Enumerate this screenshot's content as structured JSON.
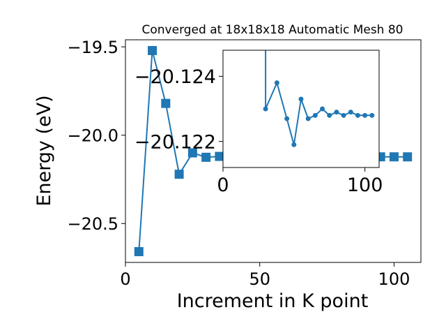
{
  "chart_data": [
    {
      "type": "line",
      "title": "Converged at 18x18x18 Automatic Mesh 80",
      "xlabel": "Increment in K point",
      "ylabel": "Energy (eV)",
      "xlim": [
        0,
        110
      ],
      "ylim": [
        -20.72,
        -19.46
      ],
      "xticks": [
        0,
        50,
        100
      ],
      "xtick_labels": [
        "0",
        "50",
        "100"
      ],
      "yticks": [
        -19.5,
        -20.0,
        -20.5
      ],
      "ytick_labels": [
        "−19.5",
        "−20.0",
        "−20.5"
      ],
      "marker": "square",
      "color": "#1f77b4",
      "grid": false,
      "series": [
        {
          "x": [
            5,
            10,
            15,
            20,
            25,
            30,
            35,
            40,
            45,
            50,
            55,
            60,
            65,
            70,
            75,
            80,
            85,
            90,
            95,
            100,
            105
          ],
          "y": [
            -20.659,
            -19.521,
            -19.82,
            -20.221,
            -20.1,
            -20.125,
            -20.12,
            -20.123,
            -20.124,
            -20.1215,
            -20.1235,
            -20.123,
            -20.1223,
            -20.1226,
            -20.1225,
            -20.1225,
            -20.1225,
            -20.1226,
            -20.1225,
            -20.1225,
            -20.1225
          ]
        }
      ]
    },
    {
      "type": "line",
      "title": "",
      "xlabel": "",
      "ylabel": "",
      "xlim": [
        0,
        110
      ],
      "ylim": [
        -20.1212,
        -20.1248
      ],
      "xticks": [
        0,
        100
      ],
      "xtick_labels": [
        "0",
        "100"
      ],
      "yticks": [
        -20.124,
        -20.122
      ],
      "ytick_labels": [
        "−20.124",
        "−20.122"
      ],
      "marker": "circle",
      "color": "#1f77b4",
      "grid": false,
      "series": [
        {
          "x": [
            30,
            30,
            38,
            45,
            50,
            55,
            60,
            65,
            70,
            75,
            80,
            85,
            90,
            95,
            100,
            105
          ],
          "y": [
            -20.126,
            -20.123,
            -20.1238,
            -20.1227,
            -20.1219,
            -20.1233,
            -20.1227,
            -20.1228,
            -20.123,
            -20.1228,
            -20.1229,
            -20.1228,
            -20.1229,
            -20.1228,
            -20.1228,
            -20.1228
          ]
        }
      ]
    }
  ]
}
